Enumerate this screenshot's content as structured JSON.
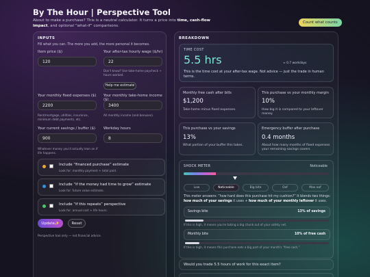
{
  "header": {
    "title": "By The Hour | Perspective Tool",
    "subtitle_pre": "About to make a purchase? This is a neutral calculator. It turns a price into ",
    "subtitle_b1": "time, cash-flow impact",
    "subtitle_post": ", and optional “what-if” comparisons.",
    "counts_button": "Count what counts"
  },
  "inputs": {
    "title": "INPUTS",
    "intro": "Fill what you can. The more you add, the more personal it becomes.",
    "price_label": "Item price ($)",
    "price_value": "120",
    "wage_label": "Your after-tax hourly wage ($/hr)",
    "wage_value": "22",
    "wage_help": "Don't know? Use take-home paycheck ÷ hours worked.",
    "help_button": "Help me estimate",
    "fixed_label": "Your monthly fixed expenses ($)",
    "fixed_value": "2200",
    "fixed_help": "Rent/mortgage, utilities, insurance, minimum debt payments, etc.",
    "income_label": "Your monthly take-home income ($)",
    "income_value": "3400",
    "income_help": "All monthly income (and bonuses).",
    "savings_label": "Your current savings / buffer ($)",
    "savings_value": "900",
    "savings_help": "Whatever money you'd actually lean on if life happens.",
    "workday_label": "Workday hours",
    "workday_value": "8",
    "options": [
      {
        "title": "Include “financed purchase” estimate",
        "sub": "Look for: monthly payment + total paid.",
        "color": "#e6a93a"
      },
      {
        "title": "Include “if the money had time to grow” estimate",
        "sub": "Look for: future value estimate.",
        "color": "#3d8fd8"
      },
      {
        "title": "Include “if this repeats” perspective",
        "sub": "Look for: annual cost + life hours.",
        "color": "#4fc46a"
      }
    ],
    "update_button": "Update✨",
    "reset_button": "Reset",
    "footnote": "Perspective tool only — not financial advice."
  },
  "breakdown": {
    "title": "BREAKDOWN",
    "time_cost_label": "TIME COST",
    "time_cost_value": "5.5 hrs",
    "workdays": "≈ 0.7 workdays",
    "time_cost_desc": "This is the time cost at your after-tax wage. Not advice — just the trade in human terms.",
    "cards": [
      {
        "label": "Monthly free cash after bills",
        "value": "$1,200",
        "desc": "Take-home minus fixed expenses."
      },
      {
        "label": "This purchase vs your monthly margin",
        "value": "10%",
        "desc": "How big it is compared to your leftover money."
      },
      {
        "label": "This purchase vs your savings",
        "value": "13%",
        "desc": "What portion of your buffer this takes."
      },
      {
        "label": "Emergency buffer after purchase",
        "value": "0.4 months",
        "desc": "About how many months of fixed expenses your remaining savings covers"
      }
    ],
    "shock": {
      "title": "SHOCK METER",
      "status": "Noticeable",
      "level_fraction": 0.22,
      "levels": [
        "Low",
        "Noticeable",
        "Big bite",
        "Oof",
        "Max oof"
      ],
      "active_index": 1,
      "desc_pre": "This meter answers: “how hard does this purchase hit my cushion?” It blends two things: ",
      "desc_b1": "how much of your savings",
      "desc_mid": " it uses + ",
      "desc_b2": "how much of your monthly leftover",
      "desc_post": " it uses.",
      "savings_bite_label": "Savings bite",
      "savings_bite_value": "13% of savings",
      "savings_bite_fraction": 0.13,
      "savings_bite_note": "If this is high, it means you're taking a big chunk out of your safety net.",
      "monthly_bite_label": "Monthly bite",
      "monthly_bite_value": "10% of free cash",
      "monthly_bite_fraction": 0.1,
      "monthly_bite_note": "If this is high, it means this purchase eats a big part of your month's “free cash.”"
    },
    "question": "Would you trade 5.5 hours of work for this exact item?"
  }
}
